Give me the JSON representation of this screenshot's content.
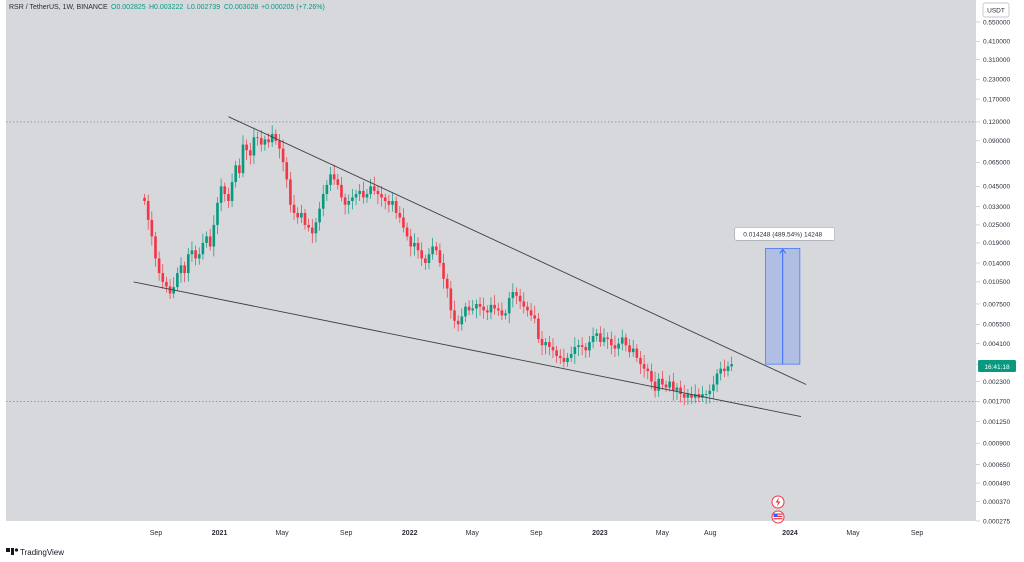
{
  "header": {
    "symbol": "RSR / TetherUS, 1W, BINANCE",
    "open": "O0.002825",
    "high": "H0.003222",
    "low": "L0.002739",
    "close": "C0.003028",
    "change": "+0.000205 (+7.26%)"
  },
  "currency_label": "USDT",
  "price_tag": "16:41:18",
  "measure_label": "0.014248 (489.54%) 14248",
  "footer": {
    "brand": "TradingView"
  },
  "colors": {
    "up": "#089981",
    "down": "#f23645",
    "measure": "#2962ff",
    "trendline": "#3b3f47",
    "background": "#d7d8dc"
  },
  "icons": [
    "lightning-icon",
    "us-flag-icon",
    "tradingview-logo-icon"
  ],
  "chart_data": {
    "type": "candlestick",
    "scale": "log",
    "y_ticks": [
      "0.550000",
      "0.410000",
      "0.310000",
      "0.230000",
      "0.170000",
      "0.120000",
      "0.090000",
      "0.065000",
      "0.045000",
      "0.033000",
      "0.025000",
      "0.019000",
      "0.014000",
      "0.010500",
      "0.007500",
      "0.005500",
      "0.004100",
      "0.003000",
      "0.002300",
      "0.001700",
      "0.001250",
      "0.000900",
      "0.000650",
      "0.000490",
      "0.000370",
      "0.000275"
    ],
    "x_ticks": [
      {
        "label": "Sep",
        "date": "2020-09-01"
      },
      {
        "label": "2021",
        "date": "2021-01-01",
        "bold": true
      },
      {
        "label": "May",
        "date": "2021-05-01"
      },
      {
        "label": "Sep",
        "date": "2021-09-01"
      },
      {
        "label": "2022",
        "date": "2022-01-01",
        "bold": true
      },
      {
        "label": "May",
        "date": "2022-05-01"
      },
      {
        "label": "Sep",
        "date": "2022-09-01"
      },
      {
        "label": "2023",
        "date": "2023-01-01",
        "bold": true
      },
      {
        "label": "May",
        "date": "2023-05-01"
      },
      {
        "label": "Aug",
        "date": "2023-08-01"
      },
      {
        "label": "2024",
        "date": "2024-01-01",
        "bold": true
      },
      {
        "label": "May",
        "date": "2024-05-01"
      },
      {
        "label": "Sep",
        "date": "2024-09-01"
      }
    ],
    "first_week": "2020-08-10",
    "weekly_close": [
      0.036,
      0.027,
      0.021,
      0.015,
      0.012,
      0.0105,
      0.0098,
      0.0088,
      0.0097,
      0.012,
      0.0135,
      0.012,
      0.016,
      0.017,
      0.015,
      0.016,
      0.019,
      0.021,
      0.018,
      0.025,
      0.035,
      0.045,
      0.04,
      0.036,
      0.048,
      0.062,
      0.055,
      0.085,
      0.078,
      0.072,
      0.095,
      0.094,
      0.085,
      0.092,
      0.088,
      0.1,
      0.09,
      0.08,
      0.065,
      0.05,
      0.034,
      0.03,
      0.028,
      0.03,
      0.025,
      0.024,
      0.022,
      0.026,
      0.032,
      0.04,
      0.046,
      0.054,
      0.05,
      0.046,
      0.038,
      0.034,
      0.036,
      0.038,
      0.04,
      0.042,
      0.038,
      0.04,
      0.045,
      0.042,
      0.04,
      0.038,
      0.036,
      0.034,
      0.036,
      0.03,
      0.028,
      0.024,
      0.021,
      0.018,
      0.019,
      0.017,
      0.015,
      0.014,
      0.016,
      0.018,
      0.017,
      0.014,
      0.011,
      0.0095,
      0.0068,
      0.0058,
      0.0055,
      0.0062,
      0.0072,
      0.0068,
      0.007,
      0.0075,
      0.0072,
      0.0068,
      0.0066,
      0.0074,
      0.007,
      0.0068,
      0.0063,
      0.0065,
      0.0082,
      0.009,
      0.0085,
      0.0078,
      0.0072,
      0.0068,
      0.0063,
      0.006,
      0.0044,
      0.004,
      0.0042,
      0.0039,
      0.0037,
      0.0034,
      0.0033,
      0.0031,
      0.0033,
      0.0035,
      0.0039,
      0.004,
      0.0039,
      0.0037,
      0.0042,
      0.0046,
      0.0048,
      0.0042,
      0.0045,
      0.0044,
      0.004,
      0.0038,
      0.0041,
      0.0045,
      0.004,
      0.0036,
      0.0038,
      0.0033,
      0.003,
      0.0028,
      0.0027,
      0.0023,
      0.002,
      0.0024,
      0.0022,
      0.0021,
      0.0023,
      0.002,
      0.0021,
      0.0019,
      0.0018,
      0.0019,
      0.0018,
      0.0019,
      0.0018,
      0.0019,
      0.0019,
      0.002,
      0.0022,
      0.0026,
      0.0028,
      0.0027,
      0.0029,
      0.003
    ],
    "trendlines": [
      {
        "name": "upper",
        "start": {
          "date": "2021-01-18",
          "price": 0.13
        },
        "end": {
          "date": "2024-02-01",
          "price": 0.0022
        }
      },
      {
        "name": "lower",
        "start": {
          "date": "2020-07-20",
          "price": 0.0105
        },
        "end": {
          "date": "2024-01-22",
          "price": 0.00135
        }
      }
    ],
    "horizontal_levels": [
      0.12,
      0.0017
    ],
    "measure": {
      "date_start": "2023-11-15",
      "date_end": "2024-01-20",
      "price_low": 0.003,
      "price_high": 0.0175
    }
  }
}
